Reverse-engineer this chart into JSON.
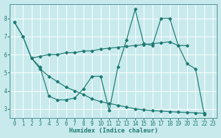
{
  "bg_color": "#c8eaed",
  "grid_color": "#b0d8dc",
  "line_color": "#1e7b72",
  "xlabel": "Humidex (Indice chaleur)",
  "xlim": [
    -0.5,
    23.5
  ],
  "ylim": [
    2.5,
    8.8
  ],
  "yticks": [
    3,
    4,
    5,
    6,
    7,
    8
  ],
  "xticks": [
    0,
    1,
    2,
    3,
    4,
    5,
    6,
    7,
    8,
    9,
    10,
    11,
    12,
    13,
    14,
    15,
    16,
    17,
    18,
    19,
    20,
    21,
    22,
    23
  ],
  "lineA_x": [
    0,
    1,
    2,
    3,
    4,
    5,
    6,
    7,
    8,
    9,
    10,
    11,
    12,
    13,
    14,
    15,
    16,
    17,
    18,
    19,
    20,
    21,
    22
  ],
  "lineA_y": [
    7.8,
    7.0,
    5.8,
    5.3,
    3.7,
    3.5,
    3.5,
    3.6,
    4.1,
    4.8,
    4.8,
    2.9,
    5.3,
    6.8,
    8.5,
    6.6,
    6.5,
    8.0,
    8.0,
    6.5,
    5.5,
    5.2,
    2.7
  ],
  "lineB_x": [
    2,
    3,
    4,
    5,
    6,
    7,
    8,
    9,
    10,
    11,
    12,
    13,
    14,
    15,
    16,
    17,
    18,
    19,
    20
  ],
  "lineB_y": [
    5.8,
    5.9,
    6.0,
    6.0,
    6.1,
    6.1,
    6.2,
    6.2,
    6.3,
    6.35,
    6.4,
    6.45,
    6.5,
    6.55,
    6.6,
    6.65,
    6.7,
    6.5,
    6.5
  ],
  "lineC_x": [
    0,
    1,
    2,
    3,
    4,
    5,
    6,
    7,
    8,
    9,
    10,
    11,
    12,
    13,
    14,
    15,
    16,
    17,
    18,
    19,
    20,
    21,
    22
  ],
  "lineC_y": [
    7.8,
    7.0,
    5.8,
    5.2,
    4.8,
    4.5,
    4.2,
    4.0,
    3.8,
    3.55,
    3.4,
    3.3,
    3.2,
    3.1,
    3.0,
    2.95,
    2.9,
    2.88,
    2.85,
    2.82,
    2.8,
    2.78,
    2.75
  ]
}
